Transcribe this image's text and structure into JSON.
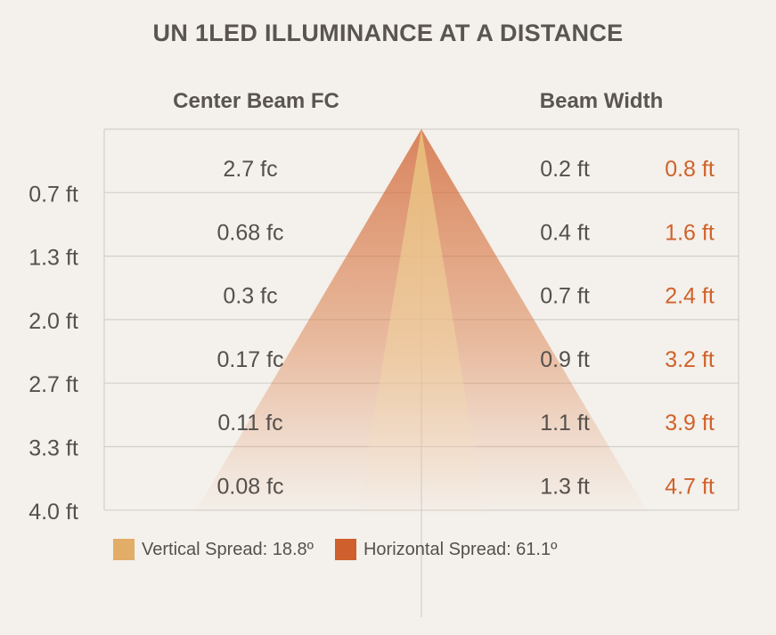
{
  "chart_data": {
    "type": "table",
    "title": "UN 1LED ILLUMINANCE AT A DISTANCE",
    "column_headers": {
      "center": "Center Beam FC",
      "beam": "Beam Width"
    },
    "rows": [
      {
        "distance": "0.7 ft",
        "fc": "2.7 fc",
        "vertical_width": "0.2 ft",
        "horizontal_width": "0.8 ft"
      },
      {
        "distance": "1.3 ft",
        "fc": "0.68 fc",
        "vertical_width": "0.4 ft",
        "horizontal_width": "1.6 ft"
      },
      {
        "distance": "2.0 ft",
        "fc": "0.3 fc",
        "vertical_width": "0.7 ft",
        "horizontal_width": "2.4 ft"
      },
      {
        "distance": "2.7 ft",
        "fc": "0.17 fc",
        "vertical_width": "0.9 ft",
        "horizontal_width": "3.2 ft"
      },
      {
        "distance": "3.3 ft",
        "fc": "0.11 fc",
        "vertical_width": "1.1 ft",
        "horizontal_width": "3.9 ft"
      },
      {
        "distance": "4.0 ft",
        "fc": "0.08 fc",
        "vertical_width": "1.3 ft",
        "horizontal_width": "4.7 ft"
      }
    ],
    "legend": [
      {
        "label": "Vertical Spread: 18.8º",
        "color": "#e2ad66",
        "spread_deg": 18.8
      },
      {
        "label": "Horizontal Spread: 61.1º",
        "color": "#cf5f2c",
        "spread_deg": 61.1
      }
    ],
    "colors": {
      "grid": "#d3d0cc",
      "text": "#55504c",
      "horizontal_value_text": "#d0622a",
      "background": "#f4f0eb"
    }
  }
}
